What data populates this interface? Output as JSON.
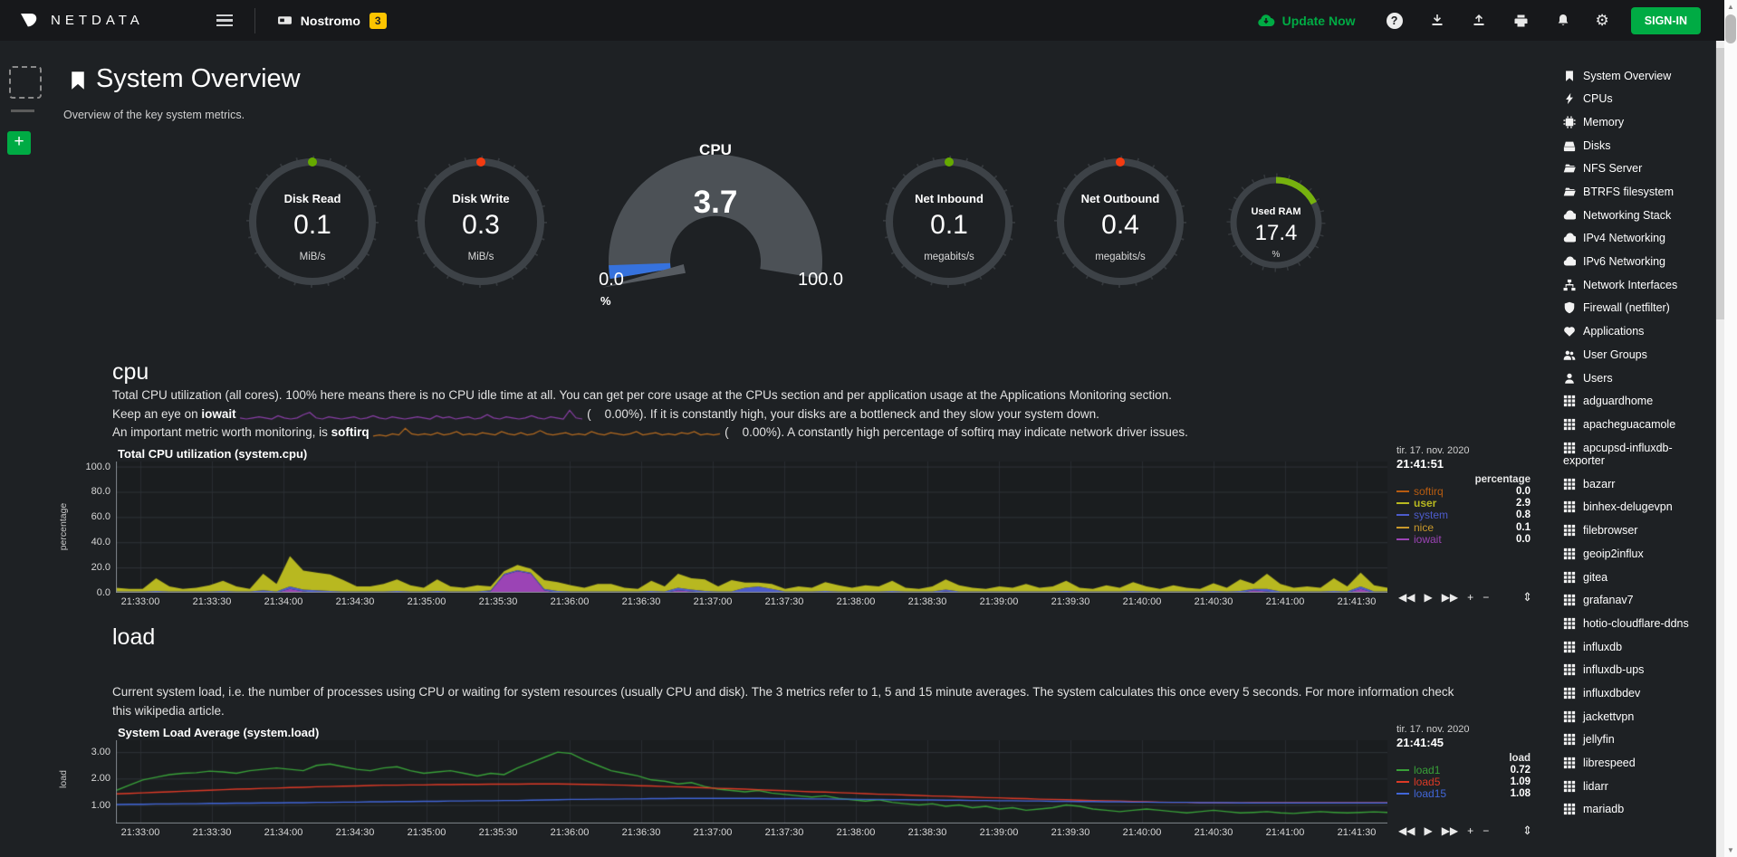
{
  "navbar": {
    "brand": "NETDATA",
    "node": "Nostromo",
    "badge": "3",
    "update_label": "Update Now",
    "signin_label": "SIGN-IN",
    "accent_green": "#00ab44",
    "badge_yellow": "#fdc400"
  },
  "header": {
    "title": "System Overview",
    "subtitle": "Overview of the key system metrics."
  },
  "gauges": {
    "easy": [
      {
        "label": "Disk Read",
        "value": "0.1",
        "unit": "MiB/s",
        "dot": "#66aa00"
      },
      {
        "label": "Disk Write",
        "value": "0.3",
        "unit": "MiB/s",
        "dot": "#f43b11"
      },
      {
        "label": "Net Inbound",
        "value": "0.1",
        "unit": "megabits/s",
        "dot": "#66aa00"
      },
      {
        "label": "Net Outbound",
        "value": "0.4",
        "unit": "megabits/s",
        "dot": "#f43b11"
      }
    ],
    "cpu_gauge": {
      "title": "CPU",
      "value": "3.7",
      "min": "0.0",
      "max": "100.0",
      "unit": "%",
      "percent": 3.7,
      "fill_color": "#3672dd"
    },
    "ram_gauge": {
      "label": "Used RAM",
      "value": "17.4",
      "unit": "%",
      "percent": 17.4,
      "color": "#76b10e"
    }
  },
  "cpu_section": {
    "heading": "cpu",
    "line1": "Total CPU utilization (all cores). 100% here means there is no CPU idle time at all. You can get per core usage at the CPUs section and per application usage at the Applications Monitoring section.",
    "line2_pre": "Keep an eye on ",
    "line2_bold": "iowait",
    "line2_post": " (    0.00%). If it is constantly high, your disks are a bottleneck and they slow your system down.",
    "line3_pre": "An important metric worth monitoring, is ",
    "line3_bold": "softirq",
    "line3_post": " (    0.00%). A constantly high percentage of softirq may indicate network driver issues.",
    "iowait_spark_color": "#8b3fa8",
    "softirq_spark_color": "#b46a1f",
    "iowait_spark": [
      1,
      0,
      1,
      2,
      1,
      0,
      3,
      1,
      0,
      1,
      4,
      6,
      1,
      0,
      2,
      1,
      0,
      1,
      2,
      0,
      1,
      3,
      1,
      0,
      2,
      1,
      0,
      1,
      2,
      1,
      0,
      3,
      1,
      2,
      0,
      1,
      2,
      0,
      1,
      4,
      1,
      0,
      2,
      1,
      0,
      1,
      3,
      1,
      0,
      2,
      1,
      0,
      8,
      1,
      0
    ],
    "softirq_spark": [
      1,
      2,
      1,
      3,
      2,
      8,
      3,
      2,
      3,
      2,
      4,
      2,
      3,
      5,
      2,
      3,
      2,
      4,
      3,
      2,
      5,
      3,
      2,
      4,
      2,
      3,
      6,
      3,
      2,
      3,
      4,
      2,
      3,
      2,
      5,
      3,
      2,
      4,
      3,
      2,
      3,
      5,
      2,
      3,
      4,
      2,
      3,
      2,
      4,
      3,
      5,
      2,
      3,
      2,
      3
    ]
  },
  "load_section": {
    "heading": "load",
    "line1": "Current system load, i.e. the number of processes using CPU or waiting for system resources (usually CPU and disk). The 3 metrics refer to 1, 5 and 15 minute averages. The system calculates this once every 5 seconds. For more information check",
    "line2": "this wikipedia article."
  },
  "toolbox": {
    "skip_back": "◀◀",
    "play": "▶",
    "skip_fwd": "▶▶",
    "zoom_in": "+",
    "zoom_out": "−",
    "resize": "⇕"
  },
  "chart_data": [
    {
      "type": "area",
      "stacked": true,
      "title": "Total CPU utilization (system.cpu)",
      "ylabel": "percentage",
      "legend_units": "percentage",
      "timestamp": "tir. 17. nov. 2020",
      "time": "21:41:51",
      "ylim": [
        0,
        104
      ],
      "grid": true,
      "legend_position": "right",
      "yticks": [
        {
          "label": "0.0",
          "v": 0
        },
        {
          "label": "20.0",
          "v": 20
        },
        {
          "label": "40.0",
          "v": 40
        },
        {
          "label": "60.0",
          "v": 60
        },
        {
          "label": "80.0",
          "v": 80
        },
        {
          "label": "100.0",
          "v": 100
        }
      ],
      "xticks": [
        "21:33:00",
        "21:33:30",
        "21:34:00",
        "21:34:30",
        "21:35:00",
        "21:35:30",
        "21:36:00",
        "21:36:30",
        "21:37:00",
        "21:37:30",
        "21:38:00",
        "21:38:30",
        "21:39:00",
        "21:39:30",
        "21:40:00",
        "21:40:30",
        "21:41:00",
        "21:41:30"
      ],
      "x0": 27,
      "dx": 79,
      "stack_order": [
        "iowait",
        "system",
        "user"
      ],
      "series": [
        {
          "name": "softirq",
          "color": "#b85c10",
          "value": "0.0",
          "data": []
        },
        {
          "name": "user",
          "color": "#b8b820",
          "value": "2.9",
          "emph": true,
          "data": [
            3,
            2,
            2,
            10,
            4,
            2,
            3,
            5,
            8,
            4,
            2,
            13,
            6,
            24,
            15,
            14,
            13,
            9,
            4,
            4,
            6,
            9,
            5,
            3,
            9,
            4,
            3,
            5,
            3,
            2,
            4,
            3,
            7,
            7,
            5,
            3,
            6,
            6,
            3,
            2,
            8,
            4,
            11,
            9,
            9,
            4,
            9,
            4,
            3,
            4,
            2,
            4,
            3,
            7,
            5,
            3,
            5,
            4,
            8,
            3,
            2,
            4,
            8,
            5,
            3,
            2,
            4,
            3,
            6,
            3,
            4,
            8,
            3,
            2,
            5,
            3,
            7,
            4,
            2,
            5,
            3,
            2,
            6,
            3,
            9,
            4,
            12,
            6,
            3,
            4,
            3,
            10,
            4,
            11,
            5,
            3
          ]
        },
        {
          "name": "system",
          "color": "#4d5ccc",
          "value": "0.8",
          "data": [
            1,
            1,
            1,
            1.5,
            1,
            1,
            1,
            1,
            1.5,
            1,
            1,
            2,
            1,
            2,
            1.5,
            2,
            1.5,
            1,
            1,
            1,
            1,
            1.5,
            1,
            1,
            1.5,
            1,
            1,
            1,
            1,
            1,
            1,
            1,
            1,
            1.5,
            1,
            1,
            1,
            1,
            1,
            1,
            1.5,
            1,
            2,
            1.5,
            1.5,
            1,
            1,
            4,
            5,
            3,
            1,
            1,
            1,
            1.5,
            1,
            1,
            1,
            1,
            1.5,
            1,
            1,
            1,
            1.5,
            1,
            1,
            1,
            1,
            1,
            1,
            1,
            1,
            1.5,
            1,
            1,
            1,
            1,
            1.5,
            1,
            1,
            1,
            1,
            1,
            1.5,
            1,
            1.5,
            1,
            2,
            1,
            1,
            1,
            1,
            1.5,
            1,
            2,
            1,
            1
          ]
        },
        {
          "name": "nice",
          "color": "#c9992c",
          "value": "0.1",
          "data": []
        },
        {
          "name": "iowait",
          "color": "#9b44b5",
          "value": "0.0",
          "data": [
            0,
            0,
            0,
            0,
            0,
            0,
            0,
            0,
            0,
            0,
            0,
            0,
            0,
            3,
            1,
            0,
            0,
            0,
            0,
            0,
            0,
            0,
            0,
            0,
            0,
            0,
            0,
            0,
            1,
            14,
            17,
            15,
            2,
            0,
            0,
            0,
            0,
            0,
            0,
            0,
            0,
            0,
            2,
            1,
            0,
            0,
            0,
            0,
            0,
            0,
            0,
            0,
            0,
            0,
            0,
            0,
            0,
            0,
            0,
            0,
            0,
            0,
            1,
            0,
            0,
            0,
            0,
            0,
            0,
            0,
            0,
            0,
            0,
            0,
            0,
            0,
            0,
            0,
            0,
            0,
            0,
            0,
            0,
            0,
            0,
            2,
            1,
            0,
            0,
            0,
            0,
            0,
            0,
            3,
            0,
            0
          ]
        }
      ]
    },
    {
      "type": "line",
      "stacked": false,
      "title": "System Load Average (system.load)",
      "ylabel": "load",
      "legend_units": "load",
      "timestamp": "tir. 17. nov. 2020",
      "time": "21:41:45",
      "ylim": [
        0.3,
        3.45
      ],
      "grid": true,
      "legend_position": "right",
      "yticks": [
        {
          "label": "1.00",
          "v": 1
        },
        {
          "label": "2.00",
          "v": 2
        },
        {
          "label": "3.00",
          "v": 3
        }
      ],
      "xticks": [
        "21:33:00",
        "21:33:30",
        "21:34:00",
        "21:34:30",
        "21:35:00",
        "21:35:30",
        "21:36:00",
        "21:36:30",
        "21:37:00",
        "21:37:30",
        "21:38:00",
        "21:38:30",
        "21:39:00",
        "21:39:30",
        "21:40:00",
        "21:40:30",
        "21:41:00",
        "21:41:30"
      ],
      "x0": 27,
      "dx": 79,
      "series": [
        {
          "name": "load1",
          "color": "#38a038",
          "value": "0.72",
          "data": [
            1.55,
            1.75,
            1.95,
            2.05,
            2.15,
            2.2,
            2.22,
            2.28,
            2.25,
            2.2,
            2.3,
            2.35,
            2.4,
            2.35,
            2.3,
            2.5,
            2.55,
            2.45,
            2.35,
            2.3,
            2.4,
            2.45,
            2.3,
            2.2,
            2.25,
            2.3,
            2.2,
            2.1,
            2.2,
            2.15,
            2.4,
            2.6,
            2.8,
            3.0,
            2.95,
            2.7,
            2.5,
            2.3,
            2.2,
            2.1,
            1.95,
            1.9,
            1.8,
            1.85,
            1.7,
            1.6,
            1.55,
            1.5,
            1.55,
            1.45,
            1.4,
            1.35,
            1.3,
            1.35,
            1.25,
            1.2,
            1.15,
            1.2,
            1.1,
            1.05,
            1.0,
            1.05,
            0.95,
            1.0,
            0.9,
            0.95,
            0.85,
            0.9,
            0.8,
            0.85,
            0.9,
            1.0,
            0.95,
            0.85,
            0.8,
            0.75,
            0.8,
            0.85,
            0.8,
            0.75,
            0.7,
            0.75,
            0.8,
            0.75,
            0.7,
            0.72,
            0.75,
            0.7,
            0.68,
            0.72,
            0.75,
            0.72,
            0.7,
            0.72,
            0.74,
            0.72
          ]
        },
        {
          "name": "load5",
          "color": "#dd3a26",
          "value": "1.09",
          "data": [
            1.42,
            1.44,
            1.46,
            1.48,
            1.5,
            1.52,
            1.54,
            1.56,
            1.58,
            1.6,
            1.61,
            1.63,
            1.64,
            1.66,
            1.67,
            1.69,
            1.7,
            1.71,
            1.72,
            1.74,
            1.75,
            1.75,
            1.76,
            1.76,
            1.77,
            1.77,
            1.78,
            1.78,
            1.79,
            1.79,
            1.79,
            1.8,
            1.8,
            1.8,
            1.79,
            1.78,
            1.77,
            1.76,
            1.75,
            1.73,
            1.72,
            1.7,
            1.69,
            1.67,
            1.65,
            1.63,
            1.62,
            1.6,
            1.58,
            1.56,
            1.54,
            1.52,
            1.5,
            1.49,
            1.47,
            1.45,
            1.43,
            1.41,
            1.4,
            1.38,
            1.36,
            1.34,
            1.33,
            1.31,
            1.3,
            1.28,
            1.27,
            1.25,
            1.24,
            1.22,
            1.21,
            1.2,
            1.18,
            1.17,
            1.16,
            1.15,
            1.13,
            1.12,
            1.11,
            1.1,
            1.1,
            1.09,
            1.09,
            1.08,
            1.08,
            1.09,
            1.09,
            1.09,
            1.09,
            1.09,
            1.09,
            1.09,
            1.09,
            1.09,
            1.09,
            1.09
          ]
        },
        {
          "name": "load15",
          "color": "#4166d8",
          "value": "1.08",
          "data": [
            1.02,
            1.03,
            1.03,
            1.04,
            1.04,
            1.05,
            1.05,
            1.06,
            1.06,
            1.07,
            1.07,
            1.08,
            1.08,
            1.09,
            1.09,
            1.1,
            1.1,
            1.11,
            1.11,
            1.12,
            1.12,
            1.13,
            1.13,
            1.14,
            1.14,
            1.15,
            1.15,
            1.16,
            1.16,
            1.17,
            1.17,
            1.18,
            1.19,
            1.2,
            1.21,
            1.21,
            1.22,
            1.22,
            1.23,
            1.23,
            1.24,
            1.24,
            1.25,
            1.25,
            1.25,
            1.25,
            1.25,
            1.25,
            1.25,
            1.24,
            1.24,
            1.24,
            1.23,
            1.23,
            1.22,
            1.22,
            1.21,
            1.21,
            1.2,
            1.2,
            1.19,
            1.19,
            1.18,
            1.18,
            1.17,
            1.17,
            1.16,
            1.16,
            1.15,
            1.15,
            1.14,
            1.14,
            1.13,
            1.13,
            1.12,
            1.12,
            1.11,
            1.11,
            1.1,
            1.1,
            1.1,
            1.09,
            1.09,
            1.09,
            1.08,
            1.08,
            1.08,
            1.08,
            1.08,
            1.08,
            1.08,
            1.08,
            1.08,
            1.08,
            1.08,
            1.08
          ]
        }
      ]
    }
  ],
  "sidebar": {
    "items": [
      {
        "icon": "bookmark",
        "label": "System Overview"
      },
      {
        "icon": "bolt",
        "label": "CPUs"
      },
      {
        "icon": "chip",
        "label": "Memory"
      },
      {
        "icon": "disk",
        "label": "Disks"
      },
      {
        "icon": "folder",
        "label": "NFS Server"
      },
      {
        "icon": "folder",
        "label": "BTRFS filesystem"
      },
      {
        "icon": "cloud",
        "label": "Networking Stack"
      },
      {
        "icon": "cloud",
        "label": "IPv4 Networking"
      },
      {
        "icon": "cloud",
        "label": "IPv6 Networking"
      },
      {
        "icon": "sitemap",
        "label": "Network Interfaces"
      },
      {
        "icon": "shield",
        "label": "Firewall (netfilter)"
      },
      {
        "icon": "apps",
        "label": "Applications"
      },
      {
        "icon": "users",
        "label": "User Groups"
      },
      {
        "icon": "user",
        "label": "Users"
      },
      {
        "icon": "grid",
        "label": "adguardhome"
      },
      {
        "icon": "grid",
        "label": "apacheguacamole"
      },
      {
        "icon": "grid",
        "label": "apcupsd-influxdb-exporter"
      },
      {
        "icon": "grid",
        "label": "bazarr"
      },
      {
        "icon": "grid",
        "label": "binhex-delugevpn"
      },
      {
        "icon": "grid",
        "label": "filebrowser"
      },
      {
        "icon": "grid",
        "label": "geoip2influx"
      },
      {
        "icon": "grid",
        "label": "gitea"
      },
      {
        "icon": "grid",
        "label": "grafanav7"
      },
      {
        "icon": "grid",
        "label": "hotio-cloudflare-ddns"
      },
      {
        "icon": "grid",
        "label": "influxdb"
      },
      {
        "icon": "grid",
        "label": "influxdb-ups"
      },
      {
        "icon": "grid",
        "label": "influxdbdev"
      },
      {
        "icon": "grid",
        "label": "jackettvpn"
      },
      {
        "icon": "grid",
        "label": "jellyfin"
      },
      {
        "icon": "grid",
        "label": "librespeed"
      },
      {
        "icon": "grid",
        "label": "lidarr"
      },
      {
        "icon": "grid",
        "label": "mariadb"
      }
    ]
  }
}
